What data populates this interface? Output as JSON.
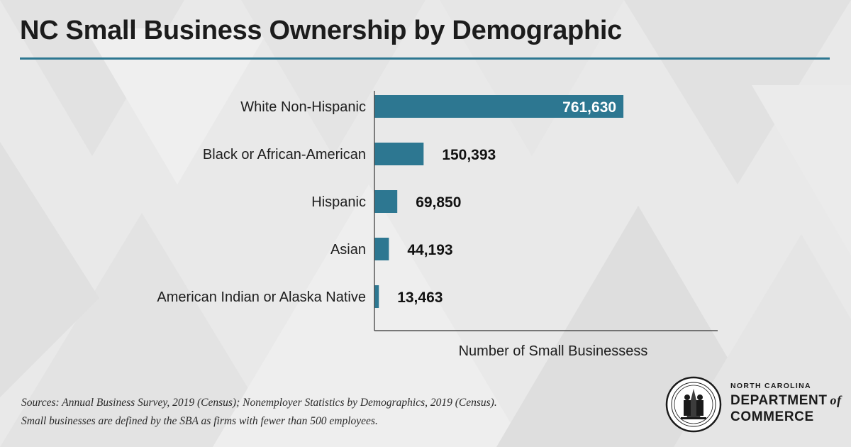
{
  "title": "NC Small Business Ownership by Demographic",
  "colors": {
    "accent": "#2d7791",
    "bar": "#2d7791"
  },
  "chart_data": {
    "type": "bar",
    "orientation": "horizontal",
    "categories": [
      "White Non-Hispanic",
      "Black or African-American",
      "Hispanic",
      "Asian",
      "American Indian or Alaska Native"
    ],
    "values": [
      761630,
      150393,
      69850,
      44193,
      13463
    ],
    "value_labels": [
      "761,630",
      "150,393",
      "69,850",
      "44,193",
      "13,463"
    ],
    "xlabel": "Number of Small Businessess",
    "xlim": [
      0,
      1050000
    ],
    "grid": false
  },
  "sources": {
    "line1": "Sources: Annual Business Survey, 2019 (Census); Nonemployer Statistics by Demographics, 2019 (Census).",
    "line2": "Small businesses are defined by the SBA as firms with fewer than 500 employees."
  },
  "logo": {
    "line1": "NORTH CAROLINA",
    "line2": "DEPARTMENT",
    "of": "of",
    "line3": "COMMERCE",
    "seal_text": "THE GREAT SEAL OF THE STATE OF NORTH CAROLINA"
  }
}
